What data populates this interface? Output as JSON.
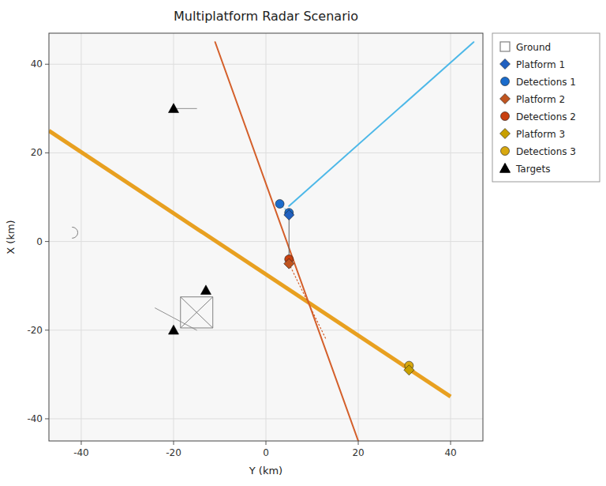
{
  "chart_data": {
    "type": "scatter",
    "title": "Multiplatform Radar Scenario",
    "xlabel": "Y (km)",
    "ylabel": "X (km)",
    "xlim": [
      -47,
      47
    ],
    "ylim": [
      -45,
      47
    ],
    "xticks": [
      -40,
      -20,
      0,
      20,
      40
    ],
    "yticks": [
      -40,
      -20,
      0,
      20,
      40
    ],
    "grid": true,
    "legend": "upper right",
    "series": [
      {
        "type": "line",
        "color": "#e8a020",
        "line_style": "thick",
        "x": [
          -47,
          40
        ],
        "values": [
          25,
          -35
        ]
      },
      {
        "type": "line",
        "color": "#d45f2a",
        "line_style": "solid",
        "x": [
          -11,
          20
        ],
        "values": [
          45,
          -45
        ]
      },
      {
        "type": "line",
        "color": "#4db8e8",
        "line_style": "solid",
        "x": [
          45,
          5
        ],
        "values": [
          45,
          8
        ]
      },
      {
        "type": "line",
        "color": "#909090",
        "line_style": "thin",
        "x": [
          -15,
          -20
        ],
        "values": [
          30,
          30
        ]
      },
      {
        "type": "line",
        "color": "#909090",
        "line_style": "thin",
        "x": [
          -24,
          -15
        ],
        "values": [
          -15,
          -20
        ]
      },
      {
        "type": "line",
        "color": "#606060",
        "line_style": "thin",
        "x": [
          5.0,
          5.0
        ],
        "values": [
          6.0,
          -5.0
        ]
      },
      {
        "type": "line",
        "color": "#d45f2a",
        "line_style": "dotted",
        "x": [
          5.0,
          13
        ],
        "values": [
          -5.0,
          -22
        ]
      },
      {
        "type": "line",
        "color": "#4db8e8",
        "line_style": "dotted",
        "x": [
          3.0,
          5.0
        ],
        "values": [
          8.5,
          6.5
        ]
      },
      {
        "type": "scatter",
        "marker": "half-circle",
        "color": "#808080",
        "x": [
          -42
        ],
        "values": [
          2
        ],
        "size": [
          2.5
        ]
      },
      {
        "name": "Ground",
        "type": "scatter",
        "marker": "box-x",
        "color": "#808080",
        "x": [
          -15
        ],
        "values": [
          -16
        ],
        "size": [
          7
        ]
      },
      {
        "name": "Platform 1",
        "type": "scatter",
        "marker": "diamond",
        "color": "#2060c0",
        "x": [
          5.0
        ],
        "values": [
          6.0
        ]
      },
      {
        "name": "Detections 1",
        "type": "scatter",
        "marker": "circle",
        "color": "#1a6ccc",
        "x": [
          3.0,
          5.0
        ],
        "values": [
          8.5,
          6.5
        ]
      },
      {
        "name": "Platform 2",
        "type": "scatter",
        "marker": "diamond",
        "color": "#c05520",
        "x": [
          5.0
        ],
        "values": [
          -5.0
        ]
      },
      {
        "name": "Detections 2",
        "type": "scatter",
        "marker": "circle",
        "color": "#c84010",
        "x": [
          5.0
        ],
        "values": [
          -4.0
        ]
      },
      {
        "name": "Platform 3",
        "type": "scatter",
        "marker": "diamond",
        "color": "#c8a000",
        "x": [
          31.0
        ],
        "values": [
          -29.0
        ]
      },
      {
        "name": "Detections 3",
        "type": "scatter",
        "marker": "circle",
        "color": "#d8a810",
        "x": [
          31.0
        ],
        "values": [
          -28.0
        ]
      },
      {
        "name": "Targets",
        "type": "scatter",
        "marker": "triangle",
        "color": "#000000",
        "x": [
          -20,
          -20,
          -13
        ],
        "values": [
          30,
          -20,
          -11
        ]
      }
    ]
  }
}
